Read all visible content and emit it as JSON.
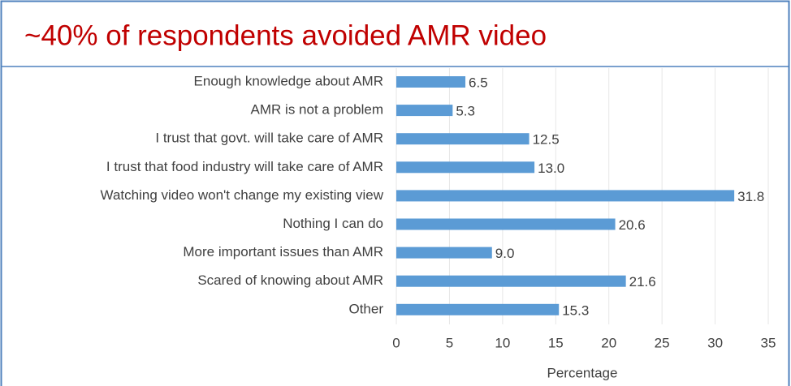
{
  "chart_data": {
    "type": "bar",
    "orientation": "horizontal",
    "title": "~40% of respondents avoided AMR video",
    "xlabel": "Percentage",
    "categories": [
      "Enough knowledge about AMR",
      "AMR is not a problem",
      "I trust that govt. will take care of AMR",
      "I trust that food industry will take care of AMR",
      "Watching video won't change my existing view",
      "Nothing I can do",
      "More important issues than AMR",
      "Scared of knowing about AMR",
      "Other"
    ],
    "values": [
      6.5,
      5.3,
      12.5,
      13.0,
      31.8,
      20.6,
      9.0,
      21.6,
      15.3
    ],
    "value_labels": [
      "6.5",
      "5.3",
      "12.5",
      "13.0",
      "31.8",
      "20.6",
      "9.0",
      "21.6",
      "15.3"
    ],
    "color": "#5b9bd5",
    "xlim": [
      0,
      35
    ],
    "xticks": [
      0,
      5,
      10,
      15,
      20,
      25,
      30,
      35
    ],
    "grid": true
  }
}
